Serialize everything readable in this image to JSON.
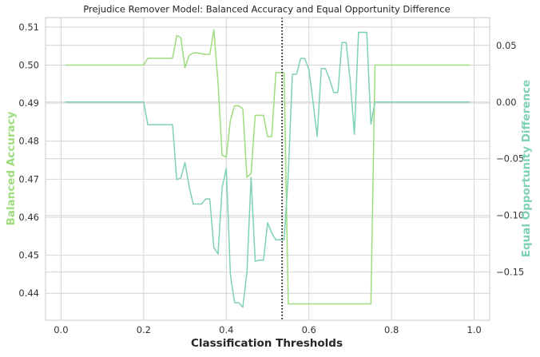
{
  "chart_data": {
    "type": "line",
    "title": "Prejudice Remover Model: Balanced Accuracy and Equal Opportunity Difference",
    "xlabel": "Classification Thresholds",
    "ylabel_left": "Balanced Accuracy",
    "ylabel_right": "Equal Opportunity Difference",
    "xlim": [
      -0.0375,
      1.0375
    ],
    "ylim_left": [
      0.4329,
      0.5125
    ],
    "ylim_right": [
      -0.1925,
      0.0745
    ],
    "grid": true,
    "xticks": [
      "0.0",
      "0.2",
      "0.4",
      "0.6",
      "0.8",
      "1.0"
    ],
    "yticks_left": [
      "0.44",
      "0.45",
      "0.46",
      "0.47",
      "0.48",
      "0.49",
      "0.50",
      "0.51"
    ],
    "yticks_right": [
      "−0.15",
      "−0.10",
      "−0.05",
      "0.00",
      "0.05"
    ],
    "best_threshold": 0.535,
    "colors": {
      "balanced_accuracy": "#9fdc7e",
      "equal_opportunity": "#7fd1b3",
      "threshold_line": "#000000",
      "grid": "#d4d4d4",
      "frame": "#c8c8c8"
    },
    "x": [
      0.01,
      0.02,
      0.03,
      0.04,
      0.05,
      0.06,
      0.07,
      0.08,
      0.09,
      0.1,
      0.11,
      0.12,
      0.13,
      0.14,
      0.15,
      0.16,
      0.17,
      0.18,
      0.19,
      0.2,
      0.21,
      0.22,
      0.23,
      0.24,
      0.25,
      0.26,
      0.27,
      0.28,
      0.29,
      0.3,
      0.31,
      0.32,
      0.33,
      0.34,
      0.35,
      0.36,
      0.37,
      0.38,
      0.39,
      0.4,
      0.41,
      0.42,
      0.43,
      0.44,
      0.45,
      0.46,
      0.47,
      0.48,
      0.49,
      0.5,
      0.51,
      0.52,
      0.53,
      0.54,
      0.55,
      0.56,
      0.57,
      0.58,
      0.59,
      0.6,
      0.61,
      0.62,
      0.63,
      0.64,
      0.65,
      0.66,
      0.67,
      0.68,
      0.69,
      0.7,
      0.71,
      0.72,
      0.73,
      0.74,
      0.75,
      0.76,
      0.77,
      0.78,
      0.79,
      0.8,
      0.81,
      0.82,
      0.83,
      0.84,
      0.85,
      0.86,
      0.87,
      0.88,
      0.89,
      0.9,
      0.91,
      0.92,
      0.93,
      0.94,
      0.95,
      0.96,
      0.97,
      0.98,
      0.99
    ],
    "series": [
      {
        "name": "Balanced Accuracy",
        "axis": "left",
        "values": [
          0.5,
          0.5,
          0.5,
          0.5,
          0.5,
          0.5,
          0.5,
          0.5,
          0.5,
          0.5,
          0.5,
          0.5,
          0.5,
          0.5,
          0.5,
          0.5,
          0.5,
          0.5,
          0.5,
          0.5,
          0.5018,
          0.5018,
          0.5018,
          0.5018,
          0.5018,
          0.5018,
          0.5018,
          0.5078,
          0.5072,
          0.4993,
          0.5025,
          0.5032,
          0.5032,
          0.503,
          0.5028,
          0.5028,
          0.5093,
          0.4955,
          0.4763,
          0.4758,
          0.4855,
          0.4893,
          0.4893,
          0.4885,
          0.4705,
          0.4715,
          0.4868,
          0.4868,
          0.4868,
          0.4812,
          0.4812,
          0.498,
          0.498,
          0.498,
          0.4372,
          0.4372,
          0.4372,
          0.4372,
          0.4372,
          0.4372,
          0.4372,
          0.4372,
          0.4372,
          0.4372,
          0.4372,
          0.4372,
          0.4372,
          0.4372,
          0.4372,
          0.4372,
          0.4372,
          0.4372,
          0.4372,
          0.4372,
          0.4372,
          0.5,
          0.5,
          0.5,
          0.5,
          0.5,
          0.5,
          0.5,
          0.5,
          0.5,
          0.5,
          0.5,
          0.5,
          0.5,
          0.5,
          0.5,
          0.5,
          0.5,
          0.5,
          0.5,
          0.5,
          0.5,
          0.5,
          0.5,
          0.5
        ]
      },
      {
        "name": "Equal Opportunity Difference",
        "axis": "right",
        "values": [
          0.0,
          0.0,
          0.0,
          0.0,
          0.0,
          0.0,
          0.0,
          0.0,
          0.0,
          0.0,
          0.0,
          0.0,
          0.0,
          0.0,
          0.0,
          0.0,
          0.0,
          0.0,
          0.0,
          0.0,
          -0.02,
          -0.02,
          -0.02,
          -0.02,
          -0.02,
          -0.02,
          -0.02,
          -0.0685,
          -0.067,
          -0.0535,
          -0.0745,
          -0.09,
          -0.09,
          -0.09,
          -0.0855,
          -0.0855,
          -0.1285,
          -0.134,
          -0.0755,
          -0.0585,
          -0.1525,
          -0.177,
          -0.177,
          -0.181,
          -0.15,
          -0.0665,
          -0.1405,
          -0.1395,
          -0.1395,
          -0.1065,
          -0.1155,
          -0.1215,
          -0.1215,
          -0.1215,
          -0.0645,
          0.0245,
          0.0245,
          0.0385,
          0.0385,
          0.0285,
          0.0,
          -0.0305,
          0.0295,
          0.0295,
          0.02,
          0.0085,
          0.0085,
          0.0525,
          0.0525,
          0.0185,
          -0.0285,
          0.0615,
          0.0615,
          0.0615,
          -0.0195,
          0.0,
          0.0,
          0.0,
          0.0,
          0.0,
          0.0,
          0.0,
          0.0,
          0.0,
          0.0,
          0.0,
          0.0,
          0.0,
          0.0,
          0.0,
          0.0,
          0.0,
          0.0,
          0.0,
          0.0,
          0.0,
          0.0,
          0.0,
          0.0
        ]
      }
    ]
  }
}
